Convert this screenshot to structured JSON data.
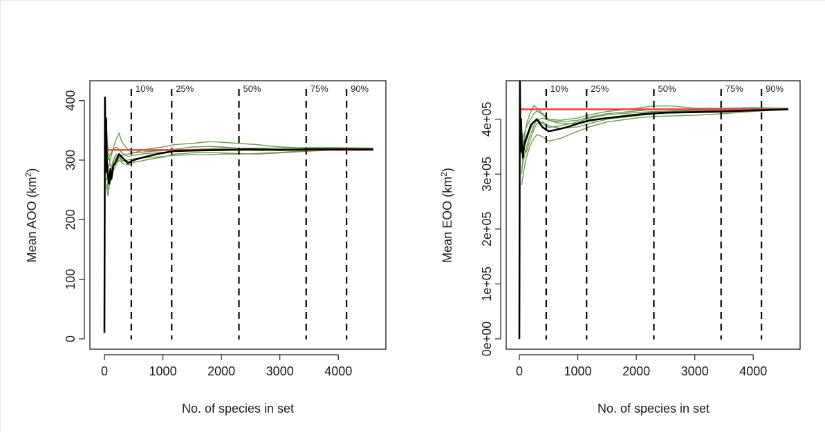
{
  "figure": {
    "colors": {
      "sim_lines": "#6b9a4e",
      "mean_line": "#000000",
      "reference_line": "#e8413c",
      "threshold_lines": "#000000"
    }
  },
  "chart_data": [
    {
      "type": "line",
      "xlabel": "No. of species in set",
      "ylabel_main": "Mean AOO (km",
      "ylabel_sup": "2",
      "ylabel_end": ")",
      "xlim": [
        0,
        4600
      ],
      "ylim": [
        0,
        410
      ],
      "x_ticks": [
        0,
        1000,
        2000,
        3000,
        4000
      ],
      "x_tick_labels": [
        "0",
        "1000",
        "2000",
        "3000",
        "4000"
      ],
      "y_ticks": [
        0,
        100,
        200,
        300,
        400
      ],
      "y_tick_labels": [
        "0",
        "100",
        "200",
        "300",
        "400"
      ],
      "reference_value": 317,
      "thresholds": [
        {
          "x": 460,
          "label": "10%"
        },
        {
          "x": 1150,
          "label": "25%"
        },
        {
          "x": 2300,
          "label": "50%"
        },
        {
          "x": 3450,
          "label": "75%"
        },
        {
          "x": 4140,
          "label": "90%"
        }
      ],
      "series": [
        {
          "role": "mean",
          "x": [
            0,
            10,
            20,
            30,
            40,
            60,
            80,
            100,
            120,
            150,
            200,
            250,
            300,
            400,
            500,
            600,
            800,
            1000,
            1200,
            1500,
            2000,
            2500,
            3000,
            3500,
            4000,
            4600
          ],
          "y": [
            10,
            405,
            280,
            370,
            300,
            275,
            260,
            285,
            268,
            290,
            298,
            310,
            305,
            295,
            300,
            303,
            308,
            312,
            315,
            316,
            317,
            318,
            317,
            318,
            318,
            318
          ]
        },
        {
          "role": "simulation",
          "x": [
            30,
            60,
            100,
            150,
            200,
            250,
            300,
            400,
            500,
            700,
            1000,
            1200,
            1500,
            1800,
            2000,
            2300,
            2600,
            3000,
            3500,
            4000,
            4600
          ],
          "y": [
            320,
            285,
            300,
            320,
            335,
            345,
            330,
            318,
            312,
            318,
            322,
            326,
            328,
            331,
            330,
            328,
            326,
            322,
            320,
            320,
            320
          ]
        },
        {
          "role": "simulation",
          "x": [
            30,
            60,
            100,
            150,
            200,
            250,
            300,
            400,
            500,
            700,
            1000,
            1200,
            1500,
            1800,
            2000,
            2300,
            2600,
            3000,
            3500,
            4000,
            4600
          ],
          "y": [
            260,
            240,
            270,
            295,
            305,
            310,
            300,
            296,
            300,
            306,
            312,
            318,
            322,
            323,
            322,
            320,
            319,
            318,
            319,
            320,
            320
          ]
        },
        {
          "role": "simulation",
          "x": [
            30,
            60,
            100,
            150,
            200,
            250,
            300,
            400,
            500,
            700,
            1000,
            1200,
            1500,
            1800,
            2000,
            2300,
            2600,
            3000,
            3500,
            4000,
            4600
          ],
          "y": [
            300,
            250,
            262,
            282,
            292,
            300,
            295,
            292,
            296,
            300,
            305,
            310,
            312,
            313,
            312,
            311,
            310,
            312,
            315,
            317,
            318
          ]
        },
        {
          "role": "simulation",
          "x": [
            30,
            60,
            100,
            150,
            200,
            250,
            300,
            400,
            500,
            700,
            1000,
            1200,
            1500,
            1800,
            2000,
            2300,
            2600,
            3000,
            3500,
            4000,
            4600
          ],
          "y": [
            340,
            300,
            310,
            318,
            322,
            318,
            312,
            306,
            308,
            311,
            313,
            315,
            316,
            317,
            318,
            317,
            316,
            317,
            318,
            319,
            319
          ]
        },
        {
          "role": "simulation",
          "x": [
            30,
            60,
            100,
            150,
            200,
            250,
            300,
            400,
            500,
            700,
            1000,
            1200,
            1500,
            1800,
            2000,
            2300,
            2600,
            3000,
            3500,
            4000,
            4600
          ],
          "y": [
            270,
            262,
            280,
            300,
            310,
            305,
            298,
            300,
            302,
            304,
            306,
            308,
            309,
            309,
            310,
            310,
            311,
            313,
            316,
            318,
            319
          ]
        },
        {
          "role": "simulation",
          "x": [
            30,
            60,
            100,
            150,
            200,
            250,
            300,
            400,
            500,
            700,
            1000,
            1200,
            1500,
            1800,
            2000,
            2300,
            2600,
            3000,
            3500,
            4000,
            4600
          ],
          "y": [
            360,
            320,
            290,
            288,
            296,
            304,
            308,
            310,
            312,
            314,
            316,
            317,
            318,
            319,
            320,
            320,
            320,
            320,
            321,
            321,
            320
          ]
        }
      ]
    },
    {
      "type": "line",
      "xlabel": "No. of species in set",
      "ylabel_main": "Mean EOO (km",
      "ylabel_sup": "2",
      "ylabel_end": ")",
      "xlim": [
        0,
        4600
      ],
      "ylim": [
        0,
        470000
      ],
      "x_ticks": [
        0,
        1000,
        2000,
        3000,
        4000
      ],
      "x_tick_labels": [
        "0",
        "1000",
        "2000",
        "3000",
        "4000"
      ],
      "y_ticks": [
        0,
        100000,
        200000,
        300000,
        400000
      ],
      "y_tick_labels": [
        "0e+00",
        "1e+05",
        "2e+05",
        "3e+05",
        "4e+05"
      ],
      "reference_value": 418000,
      "thresholds": [
        {
          "x": 460,
          "label": "10%"
        },
        {
          "x": 1150,
          "label": "25%"
        },
        {
          "x": 2300,
          "label": "50%"
        },
        {
          "x": 3450,
          "label": "75%"
        },
        {
          "x": 4140,
          "label": "90%"
        }
      ],
      "series": [
        {
          "role": "mean",
          "x": [
            0,
            10,
            20,
            30,
            40,
            60,
            80,
            100,
            150,
            200,
            250,
            300,
            400,
            500,
            600,
            800,
            1000,
            1200,
            1500,
            2000,
            2500,
            3000,
            3500,
            4000,
            4600
          ],
          "y": [
            0,
            468000,
            340000,
            400000,
            360000,
            330000,
            350000,
            360000,
            375000,
            390000,
            395000,
            400000,
            385000,
            378000,
            380000,
            385000,
            392000,
            398000,
            402000,
            408000,
            412000,
            413000,
            414000,
            416000,
            418000
          ]
        },
        {
          "role": "simulation",
          "x": [
            40,
            80,
            120,
            180,
            250,
            300,
            400,
            500,
            700,
            1000,
            1200,
            1500,
            2000,
            2300,
            2600,
            3000,
            3500,
            4000,
            4600
          ],
          "y": [
            300000,
            360000,
            390000,
            410000,
            425000,
            420000,
            410000,
            400000,
            398000,
            402000,
            408000,
            414000,
            420000,
            424000,
            424000,
            420000,
            420000,
            421000,
            420000
          ]
        },
        {
          "role": "simulation",
          "x": [
            40,
            80,
            120,
            180,
            250,
            300,
            400,
            500,
            700,
            1000,
            1200,
            1500,
            2000,
            2300,
            2600,
            3000,
            3500,
            4000,
            4600
          ],
          "y": [
            280000,
            310000,
            330000,
            350000,
            365000,
            372000,
            368000,
            360000,
            365000,
            378000,
            386000,
            395000,
            402000,
            405000,
            406000,
            407000,
            410000,
            414000,
            418000
          ]
        },
        {
          "role": "simulation",
          "x": [
            40,
            80,
            120,
            180,
            250,
            300,
            400,
            500,
            700,
            1000,
            1200,
            1500,
            2000,
            2300,
            2600,
            3000,
            3500,
            4000,
            4600
          ],
          "y": [
            340000,
            350000,
            360000,
            380000,
            395000,
            400000,
            392000,
            385000,
            388000,
            395000,
            402000,
            408000,
            412000,
            414000,
            414000,
            415000,
            416000,
            418000,
            419000
          ]
        },
        {
          "role": "simulation",
          "x": [
            40,
            80,
            120,
            180,
            250,
            300,
            400,
            500,
            700,
            1000,
            1200,
            1500,
            2000,
            2300,
            2600,
            3000,
            3500,
            4000,
            4600
          ],
          "y": [
            380000,
            345000,
            340000,
            360000,
            382000,
            392000,
            395000,
            388000,
            383000,
            386000,
            392000,
            400000,
            406000,
            410000,
            411000,
            412000,
            413000,
            416000,
            418000
          ]
        },
        {
          "role": "simulation",
          "x": [
            40,
            80,
            120,
            180,
            250,
            300,
            400,
            500,
            700,
            1000,
            1200,
            1500,
            2000,
            2300,
            2600,
            3000,
            3500,
            4000,
            4600
          ],
          "y": [
            310000,
            330000,
            348000,
            370000,
            388000,
            398000,
            402000,
            398000,
            392000,
            392000,
            396000,
            402000,
            409000,
            413000,
            415000,
            416000,
            417000,
            419000,
            419000
          ]
        },
        {
          "role": "simulation",
          "x": [
            40,
            80,
            120,
            180,
            250,
            300,
            400,
            500,
            700,
            1000,
            1200,
            1500,
            2000,
            2300,
            2600,
            3000,
            3500,
            4000,
            4600
          ],
          "y": [
            360000,
            372000,
            385000,
            398000,
            410000,
            415000,
            408000,
            398000,
            395000,
            398000,
            404000,
            410000,
            415000,
            418000,
            419000,
            418000,
            418000,
            420000,
            420000
          ]
        }
      ]
    }
  ]
}
